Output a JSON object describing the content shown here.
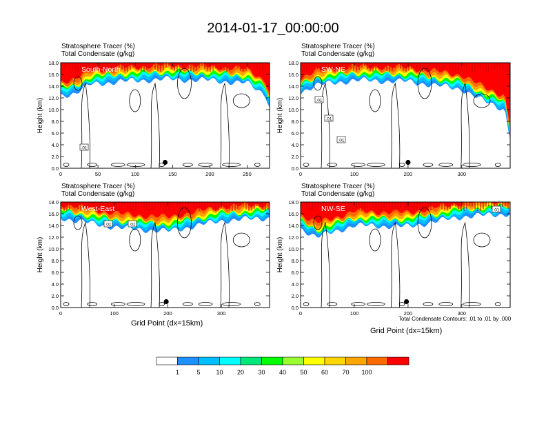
{
  "title": "2014-01-17_00:00:00",
  "panel_label_line1": "Stratosphere Tracer   (%)",
  "panel_label_line2": "Total Condensate   (g/kg)",
  "ylabel": "Height (km)",
  "xlabel": "Grid Point (dx=15km)",
  "contour_note": "Total Condensate Contours: .01 to .01 by .000",
  "colors": {
    "levels": [
      "#ffffff",
      "#1e90ff",
      "#00bfff",
      "#00ffff",
      "#00e87a",
      "#00ff00",
      "#9aff32",
      "#ffff00",
      "#ffd700",
      "#ffa500",
      "#ff6a00",
      "#ff0000"
    ],
    "colorbar_labels": [
      "1",
      "5",
      "10",
      "20",
      "30",
      "40",
      "50",
      "60",
      "70",
      "100"
    ]
  },
  "chart_data": [
    {
      "type": "heatmap",
      "panel_name": "South-North",
      "xlim": [
        0,
        280
      ],
      "ylim": [
        0,
        18
      ],
      "xticks": [
        0,
        50,
        100,
        150,
        200,
        250
      ],
      "yticks": [
        "0.0",
        "2.0",
        "4.0",
        "6.0",
        "8.0",
        "10.0",
        "12.0",
        "14.0",
        "16.0",
        "18.0"
      ],
      "contour_labels": [
        ".01"
      ],
      "tropopause_km": [
        [
          0,
          12.4
        ],
        [
          20,
          12.8
        ],
        [
          40,
          14.3
        ],
        [
          80,
          14.8
        ],
        [
          140,
          15.2
        ],
        [
          200,
          15.0
        ],
        [
          250,
          14.5
        ],
        [
          275,
          12.5
        ],
        [
          280,
          10.5
        ]
      ],
      "marker": {
        "x": 140,
        "y": 1.0
      }
    },
    {
      "type": "heatmap",
      "panel_name": "SW-NE",
      "xlim": [
        0,
        390
      ],
      "ylim": [
        0,
        18
      ],
      "xticks": [
        0,
        100,
        200,
        300
      ],
      "yticks": [
        "0.0",
        "2.0",
        "4.0",
        "6.0",
        "8.0",
        "10.0",
        "12.0",
        "14.0",
        "16.0",
        "18.0"
      ],
      "contour_labels": [
        ".01",
        ".01",
        ".01"
      ],
      "tropopause_km": [
        [
          0,
          13.0
        ],
        [
          30,
          14.2
        ],
        [
          100,
          15.0
        ],
        [
          200,
          14.8
        ],
        [
          300,
          13.5
        ],
        [
          340,
          11.5
        ],
        [
          380,
          10.0
        ],
        [
          390,
          5.0
        ]
      ],
      "marker": {
        "x": 200,
        "y": 1.0
      }
    },
    {
      "type": "heatmap",
      "panel_name": "West-East",
      "xlim": [
        0,
        390
      ],
      "ylim": [
        0,
        18
      ],
      "xticks": [
        0,
        100,
        200,
        300
      ],
      "yticks": [
        "0.0",
        "2.0",
        "4.0",
        "6.0",
        "8.0",
        "10.0",
        "12.0",
        "14.0",
        "16.0",
        "18.0"
      ],
      "contour_labels": [
        ".01",
        ".01"
      ],
      "tropopause_km": [
        [
          0,
          15.3
        ],
        [
          80,
          14.0
        ],
        [
          120,
          13.5
        ],
        [
          200,
          13.0
        ],
        [
          300,
          14.8
        ],
        [
          390,
          15.3
        ]
      ],
      "marker": {
        "x": 197,
        "y": 1.0
      }
    },
    {
      "type": "heatmap",
      "panel_name": "NW-SE",
      "xlim": [
        0,
        390
      ],
      "ylim": [
        0,
        18
      ],
      "xticks": [
        0,
        100,
        200,
        300
      ],
      "yticks": [
        "0.0",
        "2.0",
        "4.0",
        "6.0",
        "8.0",
        "10.0",
        "12.0",
        "14.0",
        "16.0",
        "18.0"
      ],
      "contour_labels": [
        ".01"
      ],
      "tropopause_km": [
        [
          0,
          13.5
        ],
        [
          30,
          12.0
        ],
        [
          100,
          14.0
        ],
        [
          200,
          13.8
        ],
        [
          300,
          15.5
        ],
        [
          390,
          16.0
        ]
      ],
      "marker": {
        "x": 197,
        "y": 1.0
      }
    }
  ]
}
